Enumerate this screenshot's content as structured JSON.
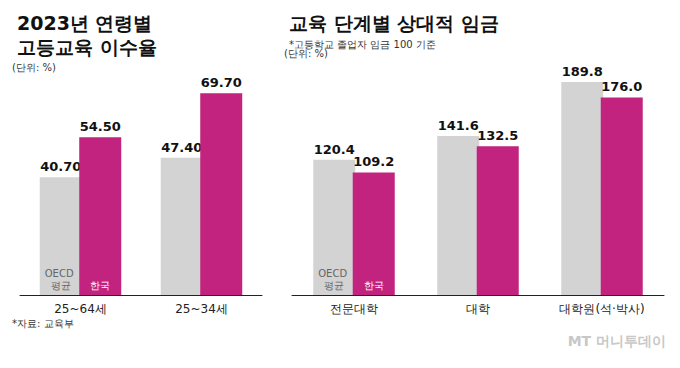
{
  "chart_data": [
    {
      "type": "bar",
      "title": "2023년 연령별 고등교육 이수율",
      "annotations": [
        "(단위: %)",
        "*자료: 교육부"
      ],
      "categories": [
        "25~64세",
        "25~34세"
      ],
      "series": [
        {
          "name": "OECD 평균",
          "color": "#d3d3d3",
          "values": [
            40.7,
            47.4
          ],
          "value_labels": [
            "40.70",
            "47.40"
          ]
        },
        {
          "name": "한국",
          "color": "#c2237f",
          "values": [
            54.5,
            69.7
          ],
          "value_labels": [
            "54.50",
            "69.70"
          ]
        }
      ],
      "ylim": [
        0,
        76
      ],
      "data_labels": true,
      "tick_labels": "x",
      "grid": false
    },
    {
      "type": "bar",
      "title": "교육 단계별 상대적 임금",
      "subtitle": "*고등학교 졸업자 임금 100 기준",
      "annotations": [
        "(단위: %)"
      ],
      "categories": [
        "전문대학",
        "대학",
        "대학원(석·박사)"
      ],
      "series": [
        {
          "name": "OECD 평균",
          "color": "#d3d3d3",
          "values": [
            120.4,
            141.6,
            189.8
          ]
        },
        {
          "name": "한국",
          "color": "#c2237f",
          "values": [
            109.2,
            132.5,
            176.0
          ],
          "value_labels": [
            "109.2",
            "132.5",
            "176.0"
          ]
        }
      ],
      "ylim": [
        0,
        196
      ],
      "data_labels": true,
      "tick_labels": "x",
      "grid": false
    }
  ],
  "credit": "MT 머니투데이"
}
